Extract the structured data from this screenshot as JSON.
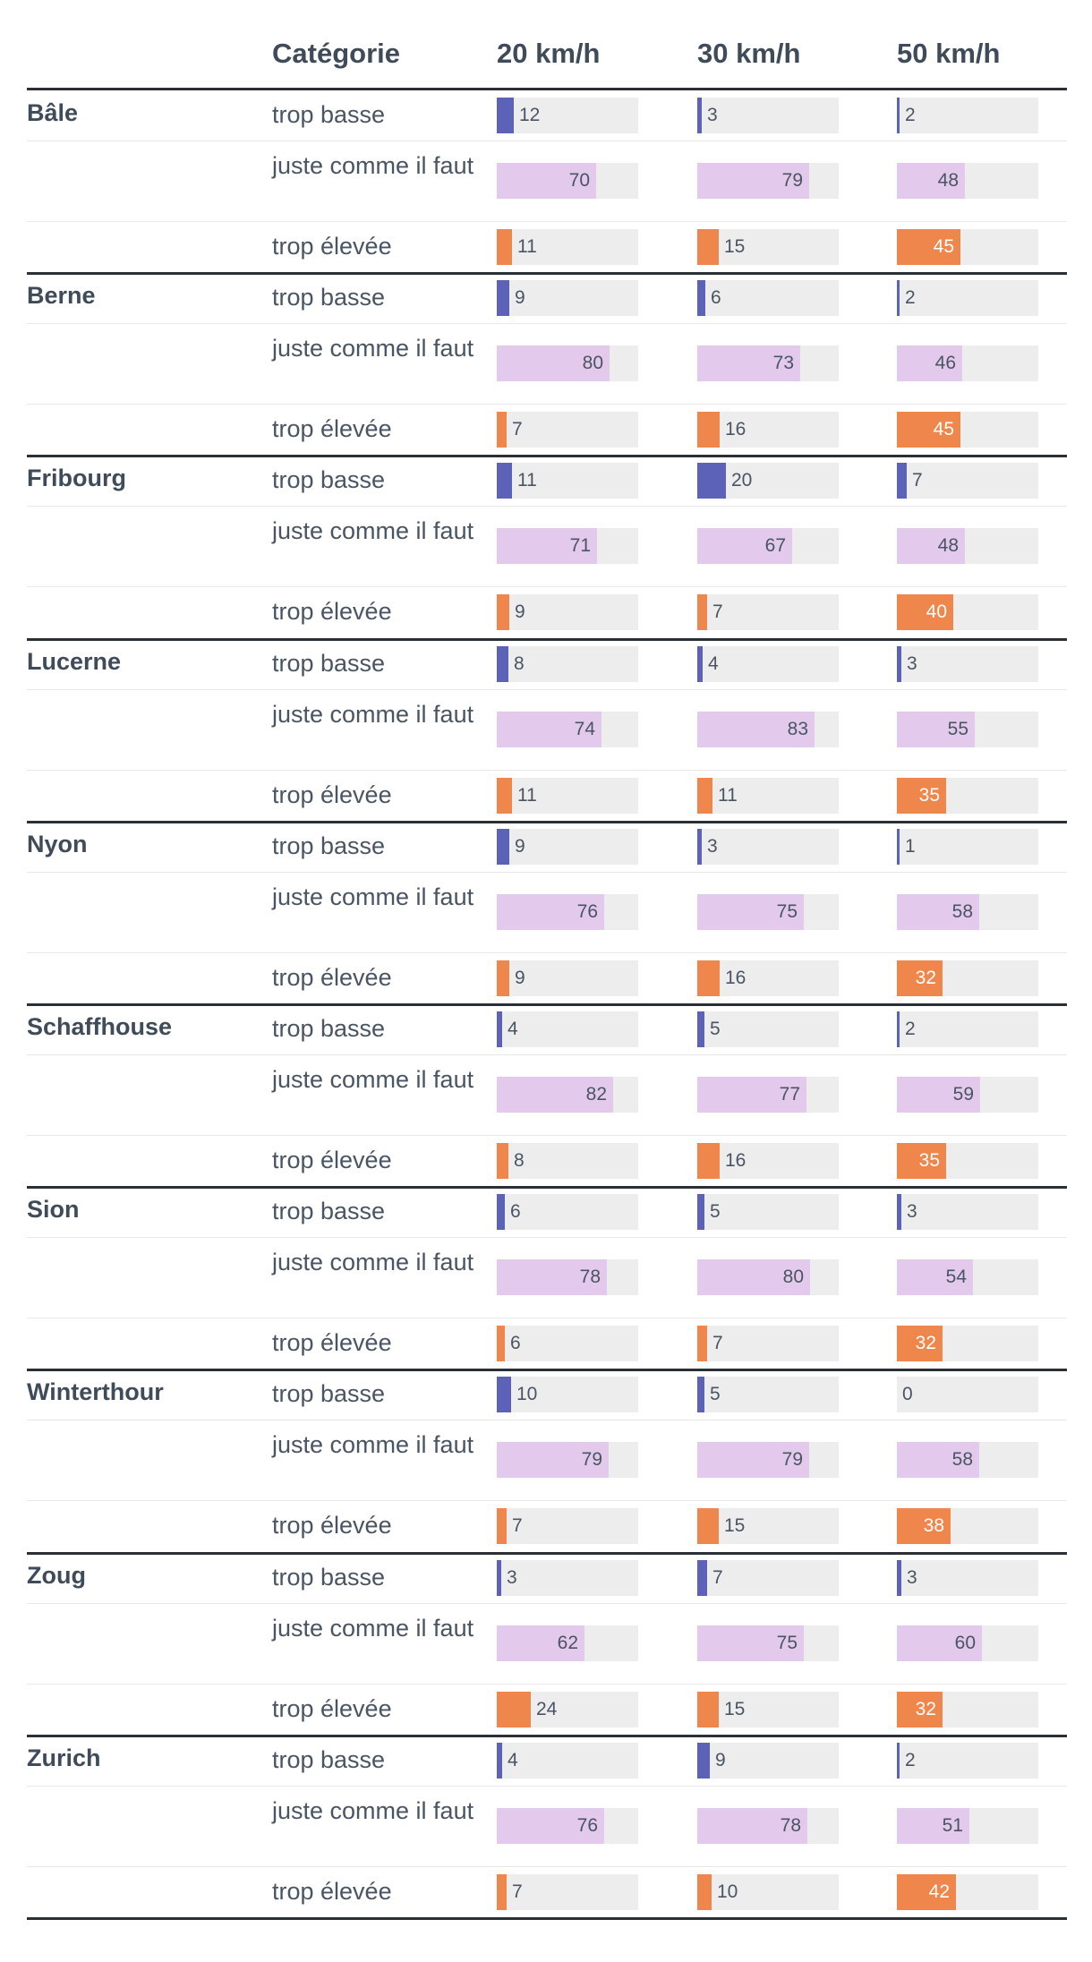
{
  "chart_data": {
    "type": "table",
    "columns": [
      "",
      "Catégorie",
      "20 km/h",
      "30 km/h",
      "50 km/h"
    ],
    "speeds": [
      "20 km/h",
      "30 km/h",
      "50 km/h"
    ],
    "categories": [
      "trop basse",
      "juste comme il faut",
      "trop élevée"
    ],
    "category_colors": {
      "trop basse": "#5b62b8",
      "juste comme il faut": "#e3c9ec",
      "trop élevée": "#ef874c"
    },
    "track_color": "#ededed",
    "scale_max": 100,
    "groups": [
      {
        "city": "Bâle",
        "values": {
          "trop basse": [
            12,
            3,
            2
          ],
          "juste comme il faut": [
            70,
            79,
            48
          ],
          "trop élevée": [
            11,
            15,
            45
          ]
        }
      },
      {
        "city": "Berne",
        "values": {
          "trop basse": [
            9,
            6,
            2
          ],
          "juste comme il faut": [
            80,
            73,
            46
          ],
          "trop élevée": [
            7,
            16,
            45
          ]
        }
      },
      {
        "city": "Fribourg",
        "values": {
          "trop basse": [
            11,
            20,
            7
          ],
          "juste comme il faut": [
            71,
            67,
            48
          ],
          "trop élevée": [
            9,
            7,
            40
          ]
        }
      },
      {
        "city": "Lucerne",
        "values": {
          "trop basse": [
            8,
            4,
            3
          ],
          "juste comme il faut": [
            74,
            83,
            55
          ],
          "trop élevée": [
            11,
            11,
            35
          ]
        }
      },
      {
        "city": "Nyon",
        "values": {
          "trop basse": [
            9,
            3,
            1
          ],
          "juste comme il faut": [
            76,
            75,
            58
          ],
          "trop élevée": [
            9,
            16,
            32
          ]
        }
      },
      {
        "city": "Schaffhouse",
        "values": {
          "trop basse": [
            4,
            5,
            2
          ],
          "juste comme il faut": [
            82,
            77,
            59
          ],
          "trop élevée": [
            8,
            16,
            35
          ]
        }
      },
      {
        "city": "Sion",
        "values": {
          "trop basse": [
            6,
            5,
            3
          ],
          "juste comme il faut": [
            78,
            80,
            54
          ],
          "trop élevée": [
            6,
            7,
            32
          ]
        }
      },
      {
        "city": "Winterthour",
        "values": {
          "trop basse": [
            10,
            5,
            0
          ],
          "juste comme il faut": [
            79,
            79,
            58
          ],
          "trop élevée": [
            7,
            15,
            38
          ]
        }
      },
      {
        "city": "Zoug",
        "values": {
          "trop basse": [
            3,
            7,
            3
          ],
          "juste comme il faut": [
            62,
            75,
            60
          ],
          "trop élevée": [
            24,
            15,
            32
          ]
        }
      },
      {
        "city": "Zurich",
        "values": {
          "trop basse": [
            4,
            9,
            2
          ],
          "juste comme il faut": [
            76,
            78,
            51
          ],
          "trop élevée": [
            7,
            10,
            42
          ]
        }
      }
    ]
  }
}
